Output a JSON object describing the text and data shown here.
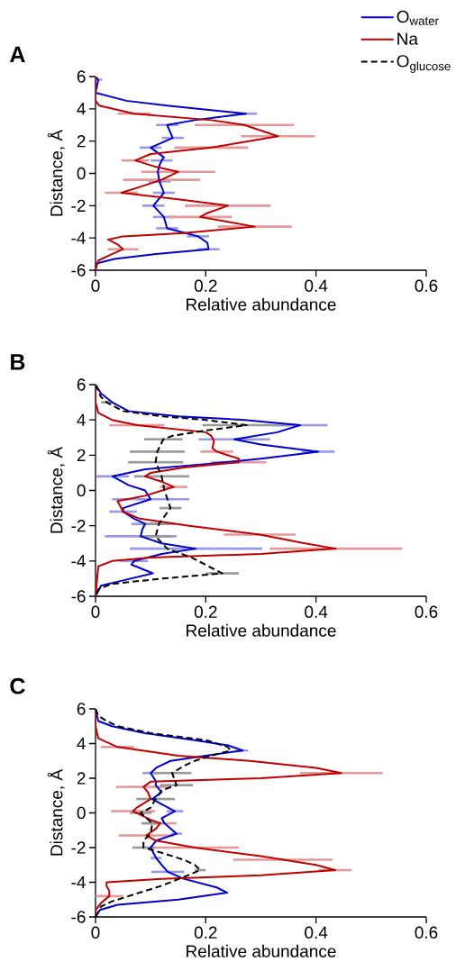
{
  "chart_data": [
    {
      "type": "line",
      "title": "A",
      "xlabel": "Relative abundance",
      "ylabel": "Distance, Å",
      "xlim": [
        0,
        0.6
      ],
      "ylim": [
        -6,
        6
      ],
      "xticks": [
        0,
        0.2,
        0.4,
        0.6
      ],
      "yticks": [
        -6,
        -4,
        -2,
        0,
        2,
        4,
        6
      ],
      "legend": "top right",
      "series": [
        {
          "name": "O$_{water}$",
          "color": "#0000cc",
          "x": [
            0,
            0.005,
            0,
            0.056,
            0.13,
            0.273,
            0.18,
            0.13,
            0.14,
            0.1,
            0.124,
            0.12,
            0.116,
            0.113,
            0.116,
            0.124,
            0.105,
            0.124,
            0.13,
            0.186,
            0.203,
            0.205,
            0.11,
            0.034,
            0,
            0
          ],
          "values": [
            6,
            5.8,
            5,
            4.5,
            4.2,
            3.7,
            3.3,
            3.0,
            2.2,
            1.6,
            1.0,
            0.8,
            0.5,
            0.1,
            -0.5,
            -1.2,
            -2.0,
            -2.7,
            -3.4,
            -3.9,
            -4.3,
            -4.7,
            -5.0,
            -5.3,
            -5.6,
            -6
          ],
          "xerrors": [
            null,
            0.007,
            null,
            null,
            null,
            0.02,
            null,
            0.02,
            0.02,
            0.02,
            null,
            0.02,
            null,
            null,
            0.02,
            0.02,
            0.02,
            0.02,
            0.02,
            0.02,
            null,
            0.02,
            null,
            null,
            null,
            null
          ]
        },
        {
          "name": "Na",
          "color": "#c00000",
          "x": [
            0,
            0,
            0.007,
            0.07,
            0.21,
            0.27,
            0.331,
            0.21,
            0.1,
            0.072,
            0.11,
            0.15,
            0.12,
            0.075,
            0.047,
            0.15,
            0.24,
            0.2,
            0.19,
            0.24,
            0.289,
            0.16,
            0.05,
            0.023,
            0.04,
            0.05,
            0.03,
            0.005,
            0
          ],
          "values": [
            6,
            4.5,
            4.2,
            3.7,
            3.3,
            3.0,
            2.3,
            1.6,
            1.2,
            0.8,
            0.4,
            0.1,
            -0.4,
            -0.9,
            -1.2,
            -1.6,
            -2.0,
            -2.5,
            -2.7,
            -3.0,
            -3.3,
            -3.7,
            -3.9,
            -4.1,
            -4.4,
            -4.7,
            -5.0,
            -5.4,
            -6
          ],
          "xerrors": [
            null,
            null,
            null,
            0.03,
            null,
            0.09,
            0.067,
            0.067,
            null,
            0.025,
            null,
            0.067,
            0.07,
            null,
            0.03,
            null,
            0.078,
            null,
            0.057,
            null,
            0.067,
            null,
            null,
            null,
            null,
            0.028,
            null,
            null,
            null
          ]
        },
        {
          "name": "O$_{glucose}$",
          "color": "#000000",
          "line_style": "dashed"
        }
      ]
    },
    {
      "type": "line",
      "title": "B",
      "xlabel": "Relative abundance",
      "ylabel": "Distance, Å",
      "xlim": [
        0,
        0.6
      ],
      "ylim": [
        -6,
        6
      ],
      "xticks": [
        0,
        0.2,
        0.4,
        0.6
      ],
      "yticks": [
        -6,
        -4,
        -2,
        0,
        2,
        4,
        6
      ],
      "series": [
        {
          "color": "#0000cc",
          "x": [
            0,
            0.01,
            0.03,
            0.06,
            0.15,
            0.27,
            0.371,
            0.33,
            0.252,
            0.3,
            0.404,
            0.3,
            0.2,
            0.09,
            0.031,
            0.06,
            0.09,
            0.1,
            0.05,
            0.05,
            0.07,
            0.09,
            0.085,
            0.082,
            0.12,
            0.182,
            0.12,
            0.07,
            0.065,
            0.104,
            0.05,
            0.01,
            0
          ],
          "values": [
            6,
            5.5,
            5,
            4.5,
            4.2,
            4.0,
            3.7,
            3.3,
            2.9,
            2.6,
            2.2,
            1.8,
            1.5,
            1.2,
            0.8,
            0.3,
            0,
            -0.5,
            -1.0,
            -1.2,
            -1.6,
            -1.9,
            -2.2,
            -2.6,
            -3.0,
            -3.3,
            -3.6,
            -4.0,
            -4.2,
            -4.7,
            -5.1,
            -5.4,
            -6
          ],
          "xerrors": [
            null,
            null,
            null,
            null,
            null,
            null,
            0.05,
            null,
            0.065,
            null,
            0.03,
            null,
            null,
            null,
            0.03,
            null,
            null,
            0.07,
            null,
            0.025,
            null,
            0.025,
            null,
            0.065,
            null,
            0.12,
            null,
            0.025,
            null,
            null,
            null,
            null,
            null
          ]
        },
        {
          "color": "#c00000",
          "x": [
            0,
            0,
            0.005,
            0.03,
            0.075,
            0.2,
            0.21,
            0.215,
            0.212,
            0.22,
            0.26,
            0.26,
            0.16,
            0.1,
            0.09,
            0.12,
            0.142,
            0.09,
            0.04,
            0.05,
            0.08,
            0.17,
            0.298,
            0.38,
            0.436,
            0.3,
            0.1,
            0.03,
            0.005,
            0
          ],
          "values": [
            6,
            5,
            4.4,
            4.0,
            3.7,
            3.3,
            3.1,
            2.8,
            2.4,
            2.2,
            1.8,
            1.6,
            1.3,
            1.0,
            0.8,
            0.5,
            0.2,
            -0.3,
            -0.6,
            -1.2,
            -1.6,
            -2.0,
            -2.5,
            -3.0,
            -3.3,
            -3.6,
            -3.8,
            -4.0,
            -4.3,
            -6
          ],
          "xerrors": [
            null,
            null,
            null,
            null,
            0.05,
            null,
            null,
            null,
            null,
            0.03,
            null,
            0.05,
            null,
            null,
            null,
            null,
            0.025,
            null,
            null,
            null,
            null,
            null,
            0.065,
            null,
            0.12,
            null,
            null,
            null,
            null,
            null
          ]
        },
        {
          "color": "#000000",
          "line_style": "dashed",
          "x": [
            0,
            0.01,
            0.02,
            0.05,
            0.12,
            0.2,
            0.274,
            0.2,
            0.14,
            0.123,
            0.112,
            0.109,
            0.12,
            0.125,
            0.136,
            0.115,
            0.109,
            0.13,
            0.174,
            0.205,
            0.23,
            0.12,
            0.03,
            0.005,
            0
          ],
          "values": [
            6,
            5.3,
            5.0,
            4.5,
            4.2,
            4.0,
            3.7,
            3.4,
            3.1,
            2.9,
            2.2,
            1.6,
            0.8,
            0,
            -1.0,
            -1.9,
            -2.6,
            -3.3,
            -3.8,
            -4.3,
            -4.7,
            -5.0,
            -5.3,
            -5.6,
            -6
          ],
          "xerrors": [
            null,
            null,
            0.01,
            null,
            null,
            null,
            0.08,
            null,
            null,
            0.035,
            0.05,
            0.05,
            0.05,
            null,
            0.02,
            0.03,
            0.03,
            null,
            null,
            null,
            0.03,
            null,
            null,
            null,
            null
          ]
        }
      ]
    },
    {
      "type": "line",
      "title": "C",
      "xlabel": "Relative abundance",
      "ylabel": "Distance, Å",
      "xlim": [
        0,
        0.6
      ],
      "ylim": [
        -6,
        6
      ],
      "xticks": [
        0,
        0.2,
        0.4,
        0.6
      ],
      "yticks": [
        -6,
        -4,
        -2,
        0,
        2,
        4,
        6
      ],
      "series": [
        {
          "color": "#0000cc",
          "x": [
            0,
            0.005,
            0.03,
            0.09,
            0.18,
            0.24,
            0.267,
            0.2,
            0.136,
            0.11,
            0.1,
            0.11,
            0.109,
            0.12,
            0.103,
            0.12,
            0.144,
            0.12,
            0.125,
            0.147,
            0.11,
            0.1,
            0.11,
            0.12,
            0.131,
            0.16,
            0.22,
            0.239,
            0.15,
            0.04,
            0.008,
            0
          ],
          "values": [
            6,
            5.3,
            5.0,
            4.6,
            4.2,
            3.9,
            3.6,
            3.3,
            3.0,
            2.6,
            2.3,
            1.8,
            1.6,
            1.2,
            0.8,
            0.5,
            0.1,
            -0.3,
            -0.6,
            -1.2,
            -1.6,
            -2.0,
            -2.6,
            -3.0,
            -3.4,
            -3.8,
            -4.3,
            -4.6,
            -5.0,
            -5.3,
            -5.6,
            -6
          ],
          "xerrors": [
            null,
            null,
            null,
            null,
            null,
            null,
            0.01,
            null,
            null,
            null,
            0.015,
            null,
            null,
            null,
            null,
            null,
            0.015,
            null,
            null,
            0.01,
            null,
            null,
            0.01,
            null,
            0.03,
            null,
            null,
            null,
            null,
            null,
            null,
            null
          ]
        },
        {
          "color": "#c00000",
          "x": [
            0,
            0,
            0.005,
            0.04,
            0.15,
            0.28,
            0.4,
            0.446,
            0.3,
            0.1,
            0.087,
            0.095,
            0.1,
            0.075,
            0.068,
            0.1,
            0.117,
            0.11,
            0.092,
            0.11,
            0.18,
            0.3,
            0.34,
            0.4,
            0.435,
            0.3,
            0.12,
            0.02,
            0.02,
            0.025,
            0.025,
            0.01,
            0,
            0
          ],
          "values": [
            6,
            5,
            4.3,
            3.8,
            3.3,
            3.0,
            2.6,
            2.3,
            2.0,
            1.8,
            1.5,
            1.2,
            0.8,
            0.3,
            0.1,
            -0.4,
            -0.6,
            -0.9,
            -1.3,
            -1.6,
            -2.0,
            -2.5,
            -2.7,
            -3.0,
            -3.3,
            -3.6,
            -3.8,
            -4.0,
            -4.2,
            -4.5,
            -4.8,
            -5.2,
            -5.6,
            -6
          ],
          "xerrors": [
            null,
            null,
            null,
            0.03,
            null,
            null,
            null,
            0.075,
            null,
            null,
            0.05,
            null,
            null,
            null,
            0.04,
            null,
            0.03,
            null,
            0.05,
            null,
            0.08,
            null,
            0.09,
            null,
            0.03,
            null,
            null,
            null,
            null,
            null,
            0.025,
            null,
            null,
            null
          ]
        },
        {
          "color": "#000000",
          "line_style": "dashed",
          "x": [
            0,
            0.005,
            0.02,
            0.04,
            0.1,
            0.2,
            0.24,
            0.245,
            0.21,
            0.18,
            0.16,
            0.139,
            0.147,
            0.12,
            0.109,
            0.1,
            0.082,
            0.103,
            0.1,
            0.087,
            0.087,
            0.12,
            0.16,
            0.18,
            0.19,
            0.16,
            0.12,
            0.07,
            0.03,
            0.01,
            0
          ],
          "values": [
            6,
            5.6,
            5.3,
            5.0,
            4.6,
            4.2,
            3.8,
            3.6,
            3.3,
            3.0,
            2.7,
            2.3,
            1.6,
            1.3,
            0.8,
            0.3,
            0,
            -0.6,
            -1.2,
            -1.6,
            -2.0,
            -2.3,
            -2.7,
            -3.0,
            -3.3,
            -3.7,
            -4.2,
            -4.7,
            -5.1,
            -5.4,
            -6
          ],
          "xerrors": [
            null,
            null,
            null,
            null,
            null,
            null,
            null,
            null,
            null,
            null,
            null,
            0.035,
            0.03,
            null,
            0.035,
            null,
            0.02,
            0.02,
            null,
            null,
            0.02,
            null,
            null,
            null,
            0.01,
            null,
            null,
            null,
            null,
            null,
            null
          ]
        }
      ]
    }
  ]
}
